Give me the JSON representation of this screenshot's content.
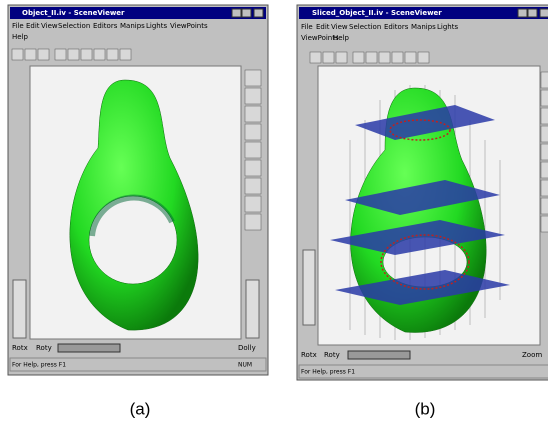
{
  "figure": {
    "panels": [
      {
        "caption": "(a)",
        "window": {
          "title": "Object_II.iv - SceneViewer",
          "menu": [
            "File",
            "Edit",
            "View",
            "Selection",
            "Editors",
            "Manips",
            "Lights",
            "ViewPoints",
            "Help"
          ],
          "wheels": [
            "Rotx",
            "Roty",
            "Dolly"
          ],
          "status": "For Help, press F1",
          "status_right": "NUM"
        }
      },
      {
        "caption": "(b)",
        "window": {
          "title": "Sliced_Object_II.iv - SceneViewer",
          "menu": [
            "File",
            "Edit",
            "View",
            "Selection",
            "Editors",
            "Manips",
            "Lights",
            "ViewPoints",
            "Help"
          ],
          "wheels": [
            "Rotx",
            "Roty",
            "Zoom"
          ],
          "status": "For Help, press F1"
        }
      }
    ]
  }
}
